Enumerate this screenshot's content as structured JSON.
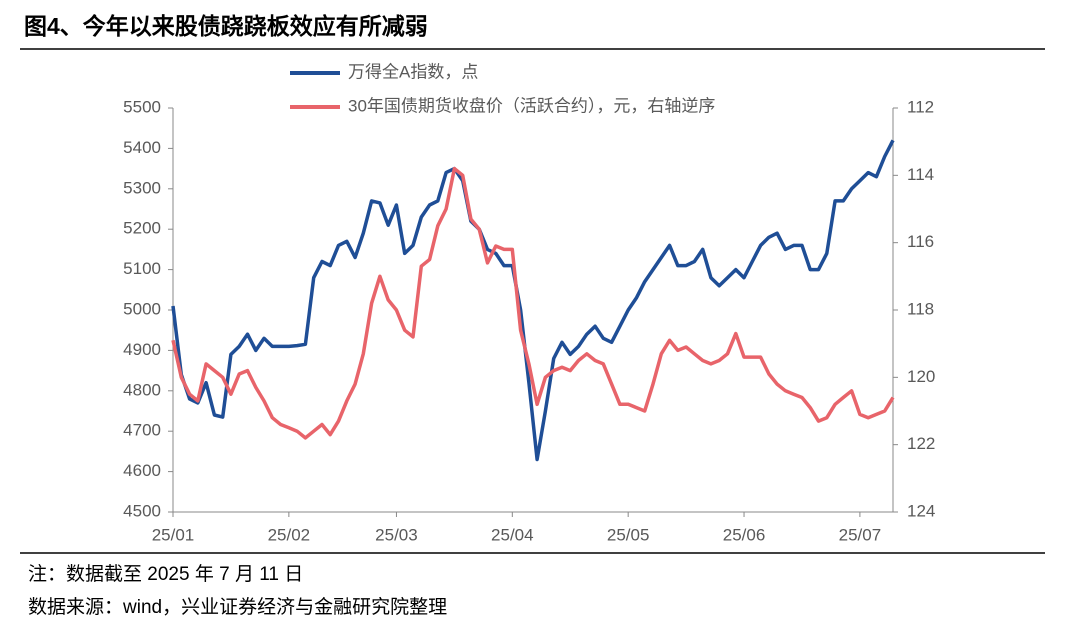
{
  "title": "图4、今年以来股债跷跷板效应有所减弱",
  "note": "注：数据截至 2025 年 7 月 11 日",
  "source": "数据来源：wind，兴业证券经济与金融研究院整理",
  "chart_data": {
    "type": "line",
    "categories": [
      "25/01",
      null,
      null,
      null,
      null,
      null,
      null,
      null,
      null,
      null,
      null,
      null,
      null,
      null,
      "25/02",
      null,
      null,
      null,
      null,
      null,
      null,
      null,
      null,
      null,
      null,
      null,
      null,
      "25/03",
      null,
      null,
      null,
      null,
      null,
      null,
      null,
      null,
      null,
      null,
      null,
      null,
      null,
      "25/04",
      null,
      null,
      null,
      null,
      null,
      null,
      null,
      null,
      null,
      null,
      null,
      null,
      null,
      "25/05",
      null,
      null,
      null,
      null,
      null,
      null,
      null,
      null,
      null,
      null,
      null,
      null,
      null,
      "25/06",
      null,
      null,
      null,
      null,
      null,
      null,
      null,
      null,
      null,
      null,
      null,
      null,
      null,
      "25/07",
      null,
      null,
      null,
      null
    ],
    "series": [
      {
        "name": "万得全A指数，点",
        "color": "#1f4e96",
        "axis": "y",
        "values": [
          5010,
          4840,
          4780,
          4770,
          4820,
          4740,
          4735,
          4890,
          4910,
          4940,
          4900,
          4930,
          4910,
          4910,
          4910,
          4912,
          4915,
          5080,
          5120,
          5110,
          5160,
          5170,
          5130,
          5190,
          5270,
          5265,
          5210,
          5260,
          5140,
          5160,
          5230,
          5260,
          5270,
          5340,
          5350,
          5320,
          5220,
          5200,
          5150,
          5140,
          5110,
          5110,
          5000,
          4820,
          4630,
          4750,
          4880,
          4920,
          4890,
          4910,
          4940,
          4960,
          4930,
          4920,
          4960,
          5000,
          5030,
          5070,
          5100,
          5130,
          5160,
          5110,
          5110,
          5120,
          5150,
          5080,
          5060,
          5080,
          5100,
          5080,
          5120,
          5160,
          5180,
          5190,
          5150,
          5160,
          5160,
          5100,
          5100,
          5140,
          5270,
          5270,
          5300,
          5320,
          5340,
          5330,
          5380,
          5420
        ]
      },
      {
        "name": "30年国债期货收盘价（活跃合约），元，右轴逆序",
        "color": "#e8646a",
        "axis": "y2",
        "values": [
          118.9,
          120.0,
          120.5,
          120.7,
          119.6,
          119.8,
          120.0,
          120.5,
          119.9,
          119.8,
          120.3,
          120.7,
          121.2,
          121.4,
          121.5,
          121.6,
          121.8,
          121.6,
          121.4,
          121.7,
          121.3,
          120.7,
          120.2,
          119.3,
          117.8,
          117.0,
          117.7,
          118.0,
          118.6,
          118.8,
          116.7,
          116.5,
          115.5,
          115.0,
          113.8,
          114.0,
          115.3,
          115.6,
          116.6,
          116.1,
          116.2,
          116.2,
          118.6,
          119.6,
          120.8,
          120.0,
          119.8,
          119.7,
          119.8,
          119.5,
          119.3,
          119.5,
          119.6,
          120.2,
          120.8,
          120.8,
          120.9,
          121.0,
          120.2,
          119.3,
          118.9,
          119.2,
          119.1,
          119.3,
          119.5,
          119.6,
          119.5,
          119.3,
          118.7,
          119.4,
          119.4,
          119.4,
          119.9,
          120.2,
          120.4,
          120.5,
          120.6,
          120.9,
          121.3,
          121.2,
          120.8,
          120.6,
          120.4,
          121.1,
          121.2,
          121.1,
          121.0,
          120.6
        ]
      }
    ],
    "ylim": [
      4500,
      5500
    ],
    "yticks": [
      4500,
      4600,
      4700,
      4800,
      4900,
      5000,
      5100,
      5200,
      5300,
      5400,
      5500
    ],
    "y2lim": [
      112,
      124
    ],
    "y2ticks": [
      112,
      114,
      116,
      118,
      120,
      122,
      124
    ],
    "y2_inverted": true,
    "grid": false
  }
}
